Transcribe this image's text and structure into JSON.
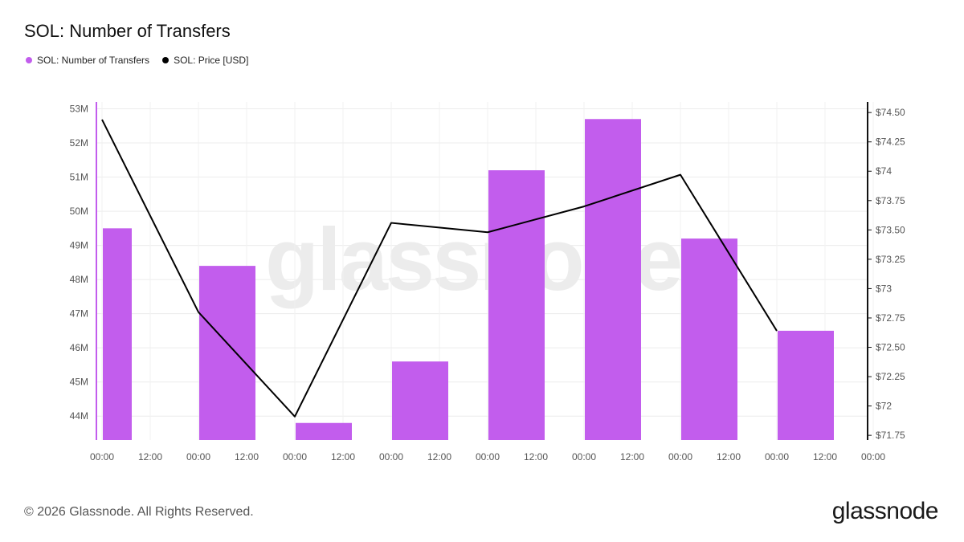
{
  "title": "SOL: Number of Transfers",
  "legend": [
    {
      "label": "SOL: Number of Transfers",
      "color": "#c25ded"
    },
    {
      "label": "SOL: Price [USD]",
      "color": "#000000"
    }
  ],
  "watermark": "glassnode",
  "footer": {
    "copyright": "© 2026 Glassnode. All Rights Reserved.",
    "logo": "glassnode"
  },
  "chart_data": {
    "type": "bar",
    "x_tick_labels": [
      "00:00",
      "12:00",
      "00:00",
      "12:00",
      "00:00",
      "12:00",
      "00:00",
      "12:00",
      "00:00",
      "12:00",
      "00:00",
      "12:00",
      "00:00",
      "12:00",
      "00:00",
      "12:00",
      "00:00"
    ],
    "grid": true,
    "series": [
      {
        "name": "SOL: Number of Transfers",
        "kind": "bar",
        "axis": "left",
        "color": "#c25ded",
        "values": [
          49.5,
          48.4,
          43.8,
          45.6,
          51.2,
          52.7,
          49.2,
          46.5
        ]
      },
      {
        "name": "SOL: Price [USD]",
        "kind": "line",
        "axis": "right",
        "color": "#000000",
        "values": [
          74.44,
          72.8,
          71.91,
          73.56,
          73.48,
          73.7,
          73.97,
          72.64
        ]
      }
    ],
    "y_left": {
      "min": 43.3,
      "max": 53.2,
      "ticks": [
        44,
        45,
        46,
        47,
        48,
        49,
        50,
        51,
        52,
        53
      ],
      "tick_labels": [
        "44M",
        "45M",
        "46M",
        "47M",
        "48M",
        "49M",
        "50M",
        "51M",
        "52M",
        "53M"
      ]
    },
    "y_right": {
      "min": 71.71,
      "max": 74.59,
      "ticks": [
        71.75,
        72,
        72.25,
        72.5,
        72.75,
        73,
        73.25,
        73.5,
        73.75,
        74,
        74.25,
        74.5
      ],
      "tick_labels": [
        "$71.75",
        "$72",
        "$72.25",
        "$72.50",
        "$72.75",
        "$73",
        "$73.25",
        "$73.50",
        "$73.75",
        "$74",
        "$74.25",
        "$74.50"
      ]
    }
  }
}
